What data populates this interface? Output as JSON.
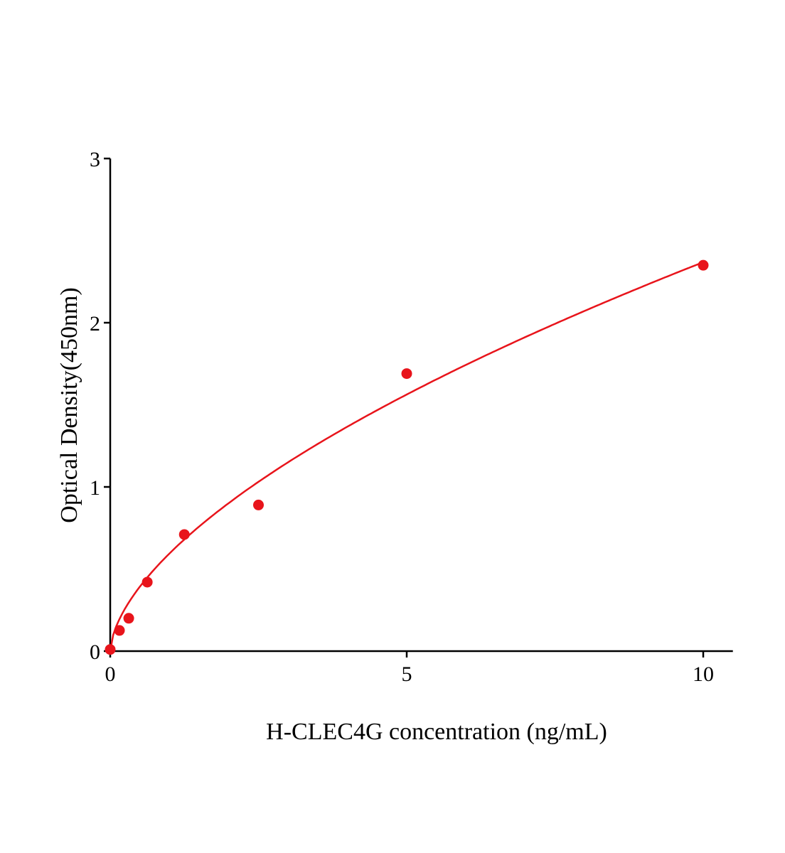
{
  "chart_data": {
    "type": "scatter",
    "title": "",
    "xlabel": "H-CLEC4G concentration (ng/mL)",
    "ylabel": "Optical Density(450nm)",
    "xlim": [
      0,
      10.5
    ],
    "ylim": [
      0,
      3
    ],
    "xticks": [
      "0",
      "5",
      "10"
    ],
    "yticks": [
      "0",
      "1",
      "2",
      "3"
    ],
    "grid": false,
    "color": "#e8141b",
    "points": {
      "x": [
        0,
        0.156,
        0.3125,
        0.625,
        1.25,
        2.5,
        5,
        10
      ],
      "y": [
        0.01,
        0.126,
        0.2,
        0.42,
        0.71,
        0.89,
        1.69,
        2.35
      ]
    },
    "fit_curve": {
      "model": "power",
      "a": 0.595,
      "b": 0.6
    }
  }
}
